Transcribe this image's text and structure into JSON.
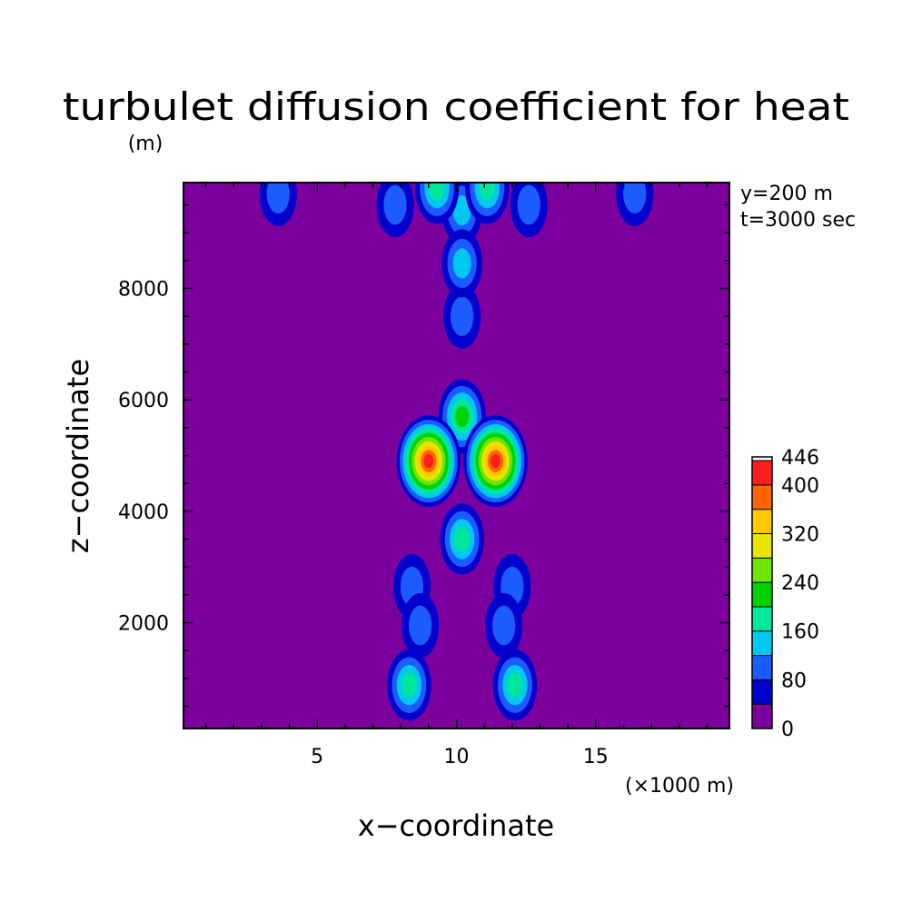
{
  "chart_data": {
    "type": "heatmap",
    "title": "turbulet diffusion coefficient for heat",
    "xlabel": "x−coordinate",
    "ylabel": "z−coordinate",
    "x_unit": "(×1000 m)",
    "y_unit": "(m)",
    "annotations": [
      "y=200 m",
      "t=3000 sec"
    ],
    "xlim": [
      0.2,
      19.8
    ],
    "ylim": [
      100,
      9900
    ],
    "x_ticks": [
      5,
      10,
      15
    ],
    "y_ticks": [
      2000,
      4000,
      6000,
      8000
    ],
    "grid": false,
    "colorbar": {
      "levels": [
        0,
        40,
        80,
        120,
        160,
        200,
        240,
        280,
        320,
        360,
        400,
        440,
        446
      ],
      "tick_labels": [
        "446",
        "400",
        "320",
        "240",
        "160",
        "80",
        "0"
      ],
      "colors": [
        "#7b009e",
        "#0000cc",
        "#1c5cff",
        "#00c8f0",
        "#00e69a",
        "#00d200",
        "#6fe600",
        "#e6e600",
        "#ffc800",
        "#ff6400",
        "#ff1e1e",
        "#ffffff"
      ]
    },
    "features": [
      {
        "x": 3.6,
        "z": 9700,
        "level": 80
      },
      {
        "x": 16.4,
        "z": 9700,
        "level": 80
      },
      {
        "x": 7.8,
        "z": 9500,
        "level": 80
      },
      {
        "x": 12.6,
        "z": 9500,
        "level": 80
      },
      {
        "x": 10.2,
        "z": 9400,
        "level": 120
      },
      {
        "x": 9.3,
        "z": 9800,
        "level": 160
      },
      {
        "x": 11.1,
        "z": 9800,
        "level": 160
      },
      {
        "x": 10.2,
        "z": 8450,
        "level": 120
      },
      {
        "x": 10.2,
        "z": 7500,
        "level": 80
      },
      {
        "x": 10.2,
        "z": 5700,
        "level": 200
      },
      {
        "x": 9.0,
        "z": 4900,
        "level": 420
      },
      {
        "x": 11.4,
        "z": 4900,
        "level": 420
      },
      {
        "x": 10.2,
        "z": 3500,
        "level": 160
      },
      {
        "x": 8.4,
        "z": 2650,
        "level": 80
      },
      {
        "x": 12.0,
        "z": 2650,
        "level": 80
      },
      {
        "x": 8.7,
        "z": 1950,
        "level": 80
      },
      {
        "x": 11.7,
        "z": 1950,
        "level": 80
      },
      {
        "x": 8.3,
        "z": 880,
        "level": 160
      },
      {
        "x": 12.1,
        "z": 880,
        "level": 160
      }
    ]
  }
}
